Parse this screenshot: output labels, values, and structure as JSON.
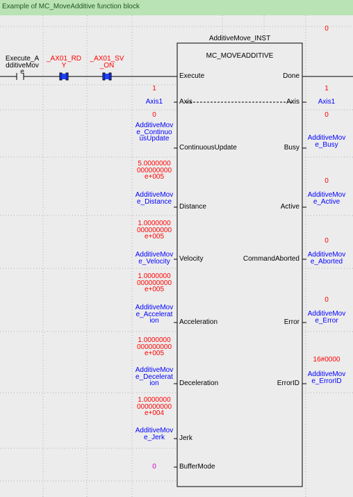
{
  "header": {
    "title": "Example of MC_MoveAdditive function block"
  },
  "rung": {
    "contacts": [
      {
        "variable": "Execute_AdditiveMove"
      },
      {
        "variable": "_AX01_RDY"
      },
      {
        "variable": "_AX01_SV_ON"
      }
    ]
  },
  "function_block": {
    "instance": "AdditiveMove_INST",
    "type": "MC_MOVEADDITIVE"
  },
  "inputs": [
    {
      "pin": "Execute"
    },
    {
      "pin": "Axis",
      "value": "1",
      "variable": "Axis1"
    },
    {
      "pin": "ContinuousUpdate",
      "value": "0",
      "variable": "AdditiveMove_ContinuousUpdate"
    },
    {
      "pin": "Distance",
      "value": "5.0000000000000000e+005",
      "variable": "AdditiveMove_Distance"
    },
    {
      "pin": "Velocity",
      "value": "1.0000000000000000e+005",
      "variable": "AdditiveMove_Velocity"
    },
    {
      "pin": "Acceleration",
      "value": "1.0000000000000000e+005",
      "variable": "AdditiveMove_Acceleration"
    },
    {
      "pin": "Deceleration",
      "value": "1.0000000000000000e+005",
      "variable": "AdditiveMove_Deceleration"
    },
    {
      "pin": "Jerk",
      "value": "1.0000000000000000e+004",
      "variable": "AdditiveMove_Jerk"
    },
    {
      "pin": "BufferMode",
      "value": "0"
    }
  ],
  "outputs": [
    {
      "pin": "Done",
      "value": "0"
    },
    {
      "pin": "Axis",
      "value": "1",
      "variable": "Axis1"
    },
    {
      "pin": "Busy",
      "value": "0",
      "variable": "AdditiveMove_Busy"
    },
    {
      "pin": "Active",
      "value": "0",
      "variable": "AdditiveMove_Active"
    },
    {
      "pin": "CommandAborted",
      "value": "0",
      "variable": "AdditiveMove_Aborted"
    },
    {
      "pin": "Error",
      "value": "0",
      "variable": "AdditiveMove_Error"
    },
    {
      "pin": "ErrorID",
      "value": "16#0000",
      "variable": "AdditiveMove_ErrorID"
    }
  ]
}
